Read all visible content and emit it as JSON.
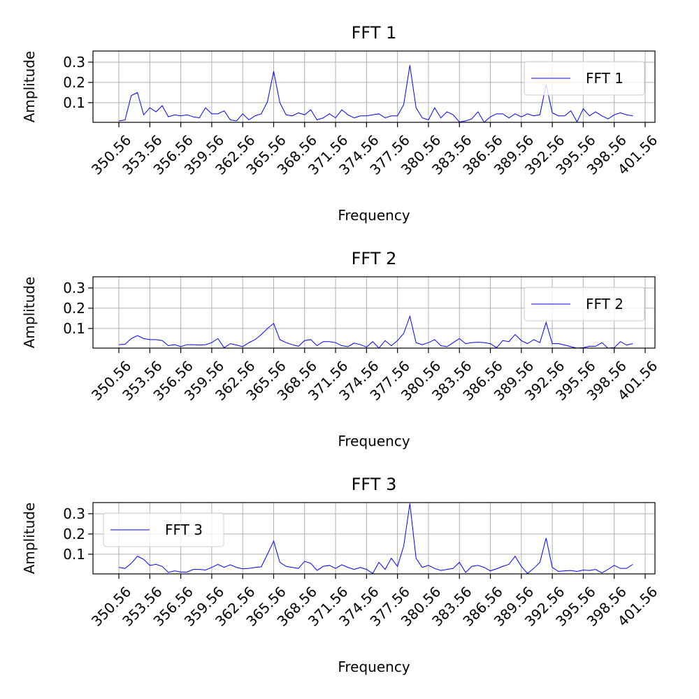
{
  "chart_data": [
    {
      "type": "line",
      "title": "FFT 1",
      "xlabel": "Frequency",
      "ylabel": "Amplitude",
      "x": [
        350.56,
        351.16,
        351.76,
        352.36,
        352.96,
        353.56,
        354.16,
        354.76,
        355.36,
        355.96,
        356.56,
        357.16,
        357.76,
        358.36,
        358.96,
        359.56,
        360.16,
        360.76,
        361.36,
        361.96,
        362.56,
        363.16,
        363.76,
        364.36,
        364.96,
        365.56,
        366.16,
        366.76,
        367.36,
        367.96,
        368.56,
        369.16,
        369.76,
        370.36,
        370.96,
        371.56,
        372.16,
        372.76,
        373.36,
        373.96,
        374.56,
        375.16,
        375.76,
        376.36,
        376.96,
        377.56,
        378.16,
        378.76,
        379.36,
        379.96,
        380.56,
        381.16,
        381.76,
        382.36,
        382.96,
        383.56,
        384.16,
        384.76,
        385.36,
        385.96,
        386.56,
        387.16,
        387.76,
        388.36,
        388.96,
        389.56,
        390.16,
        390.76,
        391.36,
        391.96,
        392.56,
        393.16,
        393.76,
        394.36,
        394.96,
        395.56,
        396.16,
        396.76,
        397.36,
        397.96,
        398.56,
        399.16,
        399.76,
        400.36
      ],
      "series": [
        {
          "name": "FFT 1",
          "color": "#0000ff",
          "values": [
            0.01,
            0.015,
            0.135,
            0.15,
            0.04,
            0.075,
            0.055,
            0.085,
            0.03,
            0.04,
            0.035,
            0.04,
            0.03,
            0.025,
            0.075,
            0.045,
            0.045,
            0.06,
            0.015,
            0.01,
            0.045,
            0.015,
            0.035,
            0.045,
            0.105,
            0.255,
            0.1,
            0.04,
            0.035,
            0.05,
            0.04,
            0.065,
            0.015,
            0.025,
            0.045,
            0.025,
            0.065,
            0.04,
            0.025,
            0.035,
            0.035,
            0.04,
            0.045,
            0.025,
            0.035,
            0.035,
            0.09,
            0.285,
            0.075,
            0.025,
            0.015,
            0.075,
            0.025,
            0.055,
            0.04,
            0.005,
            0.01,
            0.02,
            0.055,
            0.003,
            0.03,
            0.045,
            0.045,
            0.025,
            0.045,
            0.03,
            0.045,
            0.035,
            0.04,
            0.19,
            0.05,
            0.035,
            0.035,
            0.06,
            0.005,
            0.07,
            0.035,
            0.055,
            0.035,
            0.02,
            0.04,
            0.05,
            0.04,
            0.035
          ]
        }
      ],
      "xlim": [
        348.05,
        402.51
      ],
      "ylim": [
        0.003,
        0.355
      ],
      "xticks": [
        350.56,
        353.56,
        356.56,
        359.56,
        362.56,
        365.56,
        368.56,
        371.56,
        374.56,
        377.56,
        380.56,
        383.56,
        386.56,
        389.56,
        392.56,
        395.56,
        398.56,
        401.56
      ],
      "yticks": [
        0.1,
        0.2,
        0.3
      ],
      "grid": true,
      "legend": "upper right"
    },
    {
      "type": "line",
      "title": "FFT 2",
      "xlabel": "Frequency",
      "ylabel": "Amplitude",
      "x": [
        350.56,
        351.16,
        351.76,
        352.36,
        352.96,
        353.56,
        354.16,
        354.76,
        355.36,
        355.96,
        356.56,
        357.16,
        357.76,
        358.36,
        358.96,
        359.56,
        360.16,
        360.76,
        361.36,
        361.96,
        362.56,
        363.16,
        363.76,
        364.36,
        364.96,
        365.56,
        366.16,
        366.76,
        367.36,
        367.96,
        368.56,
        369.16,
        369.76,
        370.36,
        370.96,
        371.56,
        372.16,
        372.76,
        373.36,
        373.96,
        374.56,
        375.16,
        375.76,
        376.36,
        376.96,
        377.56,
        378.16,
        378.76,
        379.36,
        379.96,
        380.56,
        381.16,
        381.76,
        382.36,
        382.96,
        383.56,
        384.16,
        384.76,
        385.36,
        385.96,
        386.56,
        387.16,
        387.76,
        388.36,
        388.96,
        389.56,
        390.16,
        390.76,
        391.36,
        391.96,
        392.56,
        393.16,
        393.76,
        394.36,
        394.96,
        395.56,
        396.16,
        396.76,
        397.36,
        397.96,
        398.56,
        399.16,
        399.76,
        400.36
      ],
      "series": [
        {
          "name": "FFT 2",
          "color": "#0000ff",
          "values": [
            0.02,
            0.022,
            0.05,
            0.065,
            0.05,
            0.045,
            0.045,
            0.04,
            0.015,
            0.02,
            0.01,
            0.02,
            0.02,
            0.018,
            0.02,
            0.03,
            0.05,
            0.005,
            0.025,
            0.018,
            0.01,
            0.03,
            0.045,
            0.07,
            0.1,
            0.125,
            0.045,
            0.03,
            0.02,
            0.012,
            0.04,
            0.045,
            0.015,
            0.035,
            0.035,
            0.03,
            0.015,
            0.01,
            0.028,
            0.02,
            0.008,
            0.035,
            0.003,
            0.04,
            0.015,
            0.04,
            0.075,
            0.16,
            0.03,
            0.02,
            0.03,
            0.045,
            0.015,
            0.01,
            0.03,
            0.05,
            0.025,
            0.03,
            0.032,
            0.03,
            0.025,
            0.005,
            0.04,
            0.035,
            0.07,
            0.04,
            0.025,
            0.045,
            0.03,
            0.13,
            0.025,
            0.025,
            0.018,
            0.01,
            0.003,
            0.005,
            0.012,
            0.012,
            0.03,
            0.003,
            0.005,
            0.035,
            0.018,
            0.025
          ]
        }
      ],
      "xlim": [
        348.05,
        402.51
      ],
      "ylim": [
        0.003,
        0.355
      ],
      "xticks": [
        350.56,
        353.56,
        356.56,
        359.56,
        362.56,
        365.56,
        368.56,
        371.56,
        374.56,
        377.56,
        380.56,
        383.56,
        386.56,
        389.56,
        392.56,
        395.56,
        398.56,
        401.56
      ],
      "yticks": [
        0.1,
        0.2,
        0.3
      ],
      "grid": true,
      "legend": "upper right"
    },
    {
      "type": "line",
      "title": "FFT 3",
      "xlabel": "Frequency",
      "ylabel": "Amplitude",
      "x": [
        350.56,
        351.16,
        351.76,
        352.36,
        352.96,
        353.56,
        354.16,
        354.76,
        355.36,
        355.96,
        356.56,
        357.16,
        357.76,
        358.36,
        358.96,
        359.56,
        360.16,
        360.76,
        361.36,
        361.96,
        362.56,
        363.16,
        363.76,
        364.36,
        364.96,
        365.56,
        366.16,
        366.76,
        367.36,
        367.96,
        368.56,
        369.16,
        369.76,
        370.36,
        370.96,
        371.56,
        372.16,
        372.76,
        373.36,
        373.96,
        374.56,
        375.16,
        375.76,
        376.36,
        376.96,
        377.56,
        378.16,
        378.76,
        379.36,
        379.96,
        380.56,
        381.16,
        381.76,
        382.36,
        382.96,
        383.56,
        384.16,
        384.76,
        385.36,
        385.96,
        386.56,
        387.16,
        387.76,
        388.36,
        388.96,
        389.56,
        390.16,
        390.76,
        391.36,
        391.96,
        392.56,
        393.16,
        393.76,
        394.36,
        394.96,
        395.56,
        396.16,
        396.76,
        397.36,
        397.96,
        398.56,
        399.16,
        399.76,
        400.36
      ],
      "series": [
        {
          "name": "FFT 3",
          "color": "#0000ff",
          "values": [
            0.035,
            0.03,
            0.055,
            0.09,
            0.075,
            0.045,
            0.05,
            0.04,
            0.01,
            0.018,
            0.012,
            0.012,
            0.025,
            0.025,
            0.022,
            0.035,
            0.05,
            0.035,
            0.048,
            0.035,
            0.028,
            0.03,
            0.035,
            0.038,
            0.1,
            0.165,
            0.06,
            0.04,
            0.035,
            0.03,
            0.065,
            0.055,
            0.02,
            0.04,
            0.045,
            0.03,
            0.048,
            0.035,
            0.025,
            0.035,
            0.025,
            0.005,
            0.06,
            0.025,
            0.08,
            0.04,
            0.14,
            0.35,
            0.08,
            0.035,
            0.045,
            0.03,
            0.02,
            0.025,
            0.03,
            0.06,
            0.01,
            0.04,
            0.045,
            0.035,
            0.018,
            0.028,
            0.04,
            0.05,
            0.09,
            0.04,
            0.005,
            0.03,
            0.06,
            0.18,
            0.035,
            0.015,
            0.018,
            0.02,
            0.015,
            0.022,
            0.02,
            0.025,
            0.008,
            0.025,
            0.045,
            0.03,
            0.03,
            0.05
          ]
        }
      ],
      "xlim": [
        348.05,
        402.51
      ],
      "ylim": [
        0.003,
        0.355
      ],
      "xticks": [
        350.56,
        353.56,
        356.56,
        359.56,
        362.56,
        365.56,
        368.56,
        371.56,
        374.56,
        377.56,
        380.56,
        383.56,
        386.56,
        389.56,
        392.56,
        395.56,
        398.56,
        401.56
      ],
      "yticks": [
        0.1,
        0.2,
        0.3
      ],
      "grid": true,
      "legend": "upper left"
    }
  ]
}
